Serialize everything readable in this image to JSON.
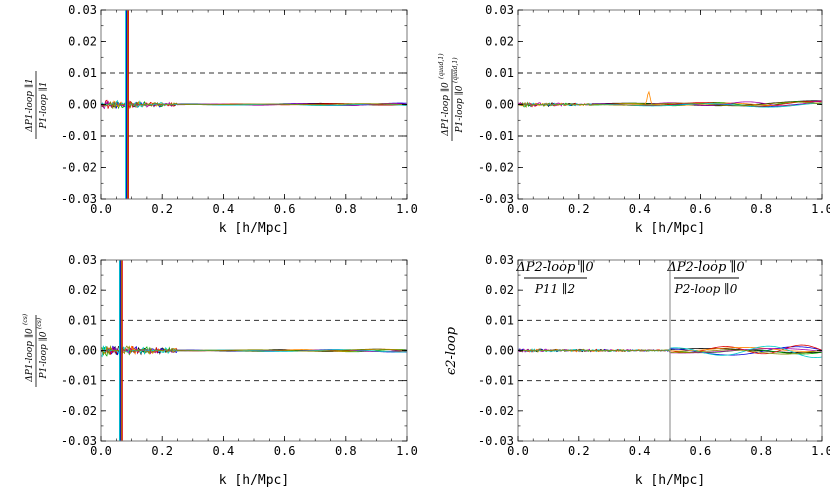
{
  "figure": {
    "colors": {
      "frame": "#777777",
      "dashed": "#333333",
      "vline": "#999999",
      "series": [
        "#000000",
        "#0000dd",
        "#00aa00",
        "#dd0000",
        "#ff8800",
        "#aa00aa",
        "#00cccc",
        "#888800",
        "#6633ff",
        "#00dd88"
      ]
    }
  },
  "chart_data": [
    {
      "type": "line",
      "panel": "top-left",
      "xlabel": "k [h/Mpc]",
      "ylabel": {
        "numerator": "ΔP1-loop ∥1",
        "denominator": "P1-loop ∥1"
      },
      "xlim": [
        0.0,
        1.0
      ],
      "ylim": [
        -0.03,
        0.03
      ],
      "xticks": [
        "0.0",
        "0.2",
        "0.4",
        "0.6",
        "0.8",
        "1.0"
      ],
      "yticks": [
        "0.03",
        "0.02",
        "0.01",
        "0.00",
        "-0.01",
        "-0.02",
        "-0.03"
      ],
      "dashed_lines": [
        0.01,
        -0.01
      ],
      "spike": {
        "x": 0.085,
        "ymin": -0.03,
        "ymax": 0.03
      },
      "series_count": 8,
      "curves": {
        "noise_until": 0.25,
        "noise_amp": 0.0015,
        "tail_amp": 0.0004
      }
    },
    {
      "type": "line",
      "panel": "top-right",
      "xlabel": "k [h/Mpc]",
      "ylabel": {
        "numerator": "ΔP1-loop ∥0",
        "num_super": "(quad,1)",
        "denominator": "P1-loop ∥0",
        "den_super": "(quad,1)"
      },
      "xlim": [
        0.0,
        1.0
      ],
      "ylim": [
        -0.03,
        0.03
      ],
      "xticks": [
        "0.0",
        "0.2",
        "0.4",
        "0.6",
        "0.8",
        "1.0"
      ],
      "yticks": [
        "0.03",
        "0.02",
        "0.01",
        "0.00",
        "-0.01",
        "-0.02",
        "-0.03"
      ],
      "dashed_lines": [
        0.01,
        -0.01
      ],
      "bump": {
        "x": 0.43,
        "y": 0.004
      },
      "series_count": 8,
      "curves": {
        "noise_until": 0.25,
        "noise_amp": 0.0008,
        "tail_amp": 0.0008
      }
    },
    {
      "type": "line",
      "panel": "bottom-left",
      "xlabel": "k [h/Mpc]",
      "ylabel": {
        "numerator": "ΔP1-loop ∥0",
        "num_super": "(cs)",
        "denominator": "P1-loop ∥0",
        "den_super": "(cs)"
      },
      "xlim": [
        0.0,
        1.0
      ],
      "ylim": [
        -0.03,
        0.03
      ],
      "xticks": [
        "0.0",
        "0.2",
        "0.4",
        "0.6",
        "0.8",
        "1.0"
      ],
      "yticks": [
        "0.03",
        "0.02",
        "0.01",
        "0.00",
        "-0.01",
        "-0.02",
        "-0.03"
      ],
      "dashed_lines": [
        0.01,
        -0.01
      ],
      "spike": {
        "x": 0.065,
        "ymin": -0.03,
        "ymax": 0.03
      },
      "series_count": 8,
      "curves": {
        "noise_until": 0.25,
        "noise_amp": 0.002,
        "tail_amp": 0.0004
      }
    },
    {
      "type": "line",
      "panel": "bottom-right",
      "xlabel": "k [h/Mpc]",
      "ylabel": "ϵ2-loop",
      "xlim": [
        0.0,
        1.0
      ],
      "ylim": [
        -0.03,
        0.03
      ],
      "xticks": [
        "0.0",
        "0.2",
        "0.4",
        "0.6",
        "0.8",
        "1.0"
      ],
      "yticks": [
        "0.03",
        "0.02",
        "0.01",
        "0.00",
        "-0.01",
        "-0.02",
        "-0.03"
      ],
      "dashed_lines": [
        0.01,
        -0.01
      ],
      "vertical_line": 0.5,
      "annotations": [
        {
          "numerator": "ΔP2-loop ∥0",
          "denominator": "P11 ∥2",
          "region": "left"
        },
        {
          "numerator": "ΔP2-loop ∥0",
          "denominator": "P2-loop ∥0",
          "region": "right"
        }
      ],
      "series_count": 8,
      "curves": {
        "noise_until": 0.5,
        "noise_amp": 0.0006,
        "tail_amp": 0.0018
      }
    }
  ]
}
